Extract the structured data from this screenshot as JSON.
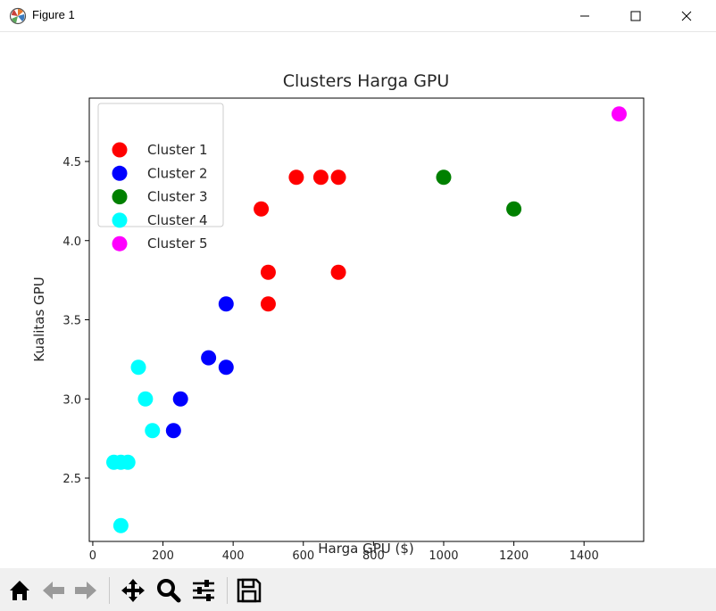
{
  "window": {
    "title": "Figure 1",
    "app_icon": "matplotlib-icon",
    "controls": [
      "minimize-icon",
      "maximize-icon",
      "close-icon"
    ]
  },
  "toolbar": {
    "buttons": [
      {
        "name": "home",
        "icon": "home-icon"
      },
      {
        "name": "back",
        "icon": "arrow-left-icon"
      },
      {
        "name": "forward",
        "icon": "arrow-right-icon"
      },
      {
        "name": "pan",
        "icon": "move-icon"
      },
      {
        "name": "zoom",
        "icon": "magnifier-icon"
      },
      {
        "name": "configure-subplots",
        "icon": "sliders-icon"
      },
      {
        "name": "save",
        "icon": "save-icon"
      }
    ]
  },
  "chart_data": {
    "type": "scatter",
    "title": "Clusters Harga GPU",
    "xlabel": "Harga GPU ($)",
    "ylabel": "Kualitas GPU",
    "xlim": [
      -10,
      1570
    ],
    "ylim": [
      2.1,
      4.9
    ],
    "xticks": [
      0,
      200,
      400,
      600,
      800,
      1000,
      1200,
      1400
    ],
    "yticks": [
      2.5,
      3.0,
      3.5,
      4.0,
      4.5
    ],
    "ytick_labels": [
      "2.5",
      "3.0",
      "3.5",
      "4.0",
      "4.5"
    ],
    "grid": false,
    "legend": "upper-left",
    "series": [
      {
        "name": "Cluster 1",
        "color": "#ff0000",
        "x": [
          480,
          580,
          650,
          700,
          500,
          700,
          500
        ],
        "y": [
          4.2,
          4.4,
          4.4,
          4.4,
          3.8,
          3.8,
          3.6
        ]
      },
      {
        "name": "Cluster 2",
        "color": "#0000ff",
        "x": [
          380,
          330,
          380,
          250,
          230
        ],
        "y": [
          3.6,
          3.26,
          3.2,
          3.0,
          2.8
        ]
      },
      {
        "name": "Cluster 3",
        "color": "#008000",
        "x": [
          1000,
          1200
        ],
        "y": [
          4.4,
          4.2
        ]
      },
      {
        "name": "Cluster 4",
        "color": "#00ffff",
        "x": [
          130,
          150,
          170,
          60,
          80,
          100,
          80
        ],
        "y": [
          3.2,
          3.0,
          2.8,
          2.6,
          2.6,
          2.6,
          2.2
        ]
      },
      {
        "name": "Cluster 5",
        "color": "#ff00ff",
        "x": [
          1500
        ],
        "y": [
          4.8
        ]
      }
    ]
  }
}
